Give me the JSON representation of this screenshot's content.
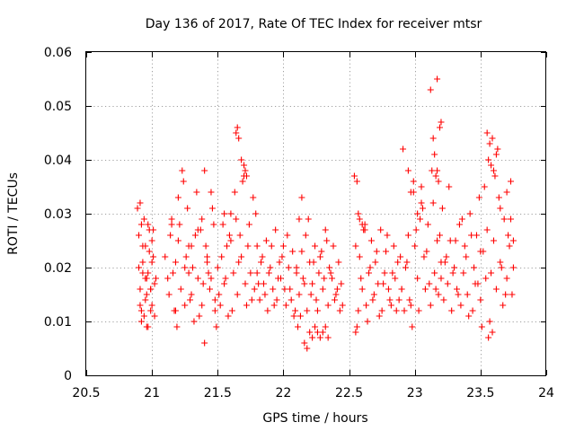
{
  "chart_data": {
    "type": "scatter",
    "title": "Day 136 of 2017, Rate Of TEC Index for receiver mtsr",
    "xlabel": "GPS time / hours",
    "ylabel": "ROTI / TECUs",
    "xlim": [
      20.5,
      24
    ],
    "ylim": [
      0,
      0.06
    ],
    "xticks": [
      20.5,
      21,
      21.5,
      22,
      22.5,
      23,
      23.5,
      24
    ],
    "xtick_labels": [
      "20.5",
      "21",
      "21.5",
      "22",
      "22.5",
      "23",
      "23.5",
      "24"
    ],
    "yticks": [
      0,
      0.01,
      0.02,
      0.03,
      0.04,
      0.05,
      0.06
    ],
    "ytick_labels": [
      "0",
      "0.01",
      "0.02",
      "0.03",
      "0.04",
      "0.05",
      "0.06"
    ],
    "grid": true,
    "marker": "+",
    "color": "#ff0000",
    "series": [
      {
        "name": "ROTI",
        "x": [
          20.89,
          20.9,
          20.91,
          20.92,
          20.93,
          20.94,
          20.95,
          20.96,
          20.97,
          20.98,
          20.99,
          21.0,
          21.01,
          21.02,
          21.03,
          20.9,
          20.91,
          20.92,
          20.93,
          20.94,
          20.95,
          20.96,
          20.97,
          20.98,
          20.99,
          21.0,
          21.02,
          20.91,
          20.93,
          20.95,
          20.97,
          20.99,
          21.01,
          20.92,
          20.96,
          21.0,
          21.1,
          21.12,
          21.14,
          21.15,
          21.17,
          21.18,
          21.2,
          21.22,
          21.23,
          21.25,
          21.27,
          21.28,
          21.3,
          21.32,
          21.34,
          21.35,
          21.37,
          21.38,
          21.4,
          21.42,
          21.44,
          21.45,
          21.47,
          21.48,
          21.13,
          21.16,
          21.19,
          21.21,
          21.24,
          21.26,
          21.29,
          21.31,
          21.33,
          21.36,
          21.39,
          21.41,
          21.43,
          21.46,
          21.49,
          21.15,
          21.2,
          21.25,
          21.3,
          21.35,
          21.4,
          21.45,
          21.18,
          21.28,
          21.38,
          21.42,
          21.48,
          21.5,
          21.52,
          21.54,
          21.55,
          21.57,
          21.58,
          21.6,
          21.62,
          21.63,
          21.65,
          21.67,
          21.68,
          21.7,
          21.72,
          21.74,
          21.75,
          21.77,
          21.78,
          21.8,
          21.51,
          21.53,
          21.56,
          21.59,
          21.61,
          21.64,
          21.66,
          21.69,
          21.71,
          21.73,
          21.76,
          21.79,
          21.64,
          21.65,
          21.66,
          21.68,
          21.7,
          21.71,
          21.72,
          21.6,
          21.55,
          21.8,
          21.82,
          21.84,
          21.85,
          21.87,
          21.88,
          21.9,
          21.92,
          21.94,
          21.95,
          21.97,
          21.98,
          22.0,
          22.02,
          22.04,
          22.05,
          22.07,
          22.08,
          22.1,
          21.81,
          21.83,
          21.86,
          21.89,
          21.91,
          21.93,
          21.96,
          21.99,
          22.01,
          22.03,
          22.06,
          22.09,
          22.1,
          22.12,
          22.14,
          22.15,
          22.17,
          22.18,
          22.2,
          22.22,
          22.24,
          22.25,
          22.27,
          22.28,
          22.3,
          22.32,
          22.34,
          22.35,
          22.37,
          22.38,
          22.4,
          22.42,
          22.44,
          22.45,
          22.11,
          22.13,
          22.16,
          22.19,
          22.21,
          22.23,
          22.26,
          22.29,
          22.31,
          22.33,
          22.36,
          22.39,
          22.41,
          22.43,
          22.16,
          22.18,
          22.2,
          22.22,
          22.24,
          22.26,
          22.28,
          22.3,
          22.32,
          22.34,
          22.14,
          22.12,
          22.55,
          22.57,
          22.58,
          22.6,
          22.62,
          22.64,
          22.65,
          22.67,
          22.68,
          22.7,
          22.72,
          22.74,
          22.75,
          22.77,
          22.78,
          22.8,
          22.82,
          22.84,
          22.85,
          22.87,
          22.88,
          22.9,
          22.56,
          22.59,
          22.61,
          22.63,
          22.66,
          22.69,
          22.71,
          22.73,
          22.76,
          22.79,
          22.81,
          22.83,
          22.86,
          22.89,
          22.54,
          22.56,
          22.58,
          22.6,
          22.62,
          22.55,
          22.57,
          22.9,
          22.92,
          22.94,
          22.95,
          22.97,
          22.98,
          23.0,
          23.02,
          23.04,
          23.05,
          23.07,
          23.08,
          23.1,
          23.12,
          23.14,
          23.15,
          23.17,
          23.18,
          23.2,
          22.91,
          22.93,
          22.96,
          22.99,
          23.01,
          23.03,
          23.06,
          23.09,
          23.11,
          23.13,
          23.16,
          23.19,
          22.95,
          22.97,
          22.99,
          23.02,
          23.05,
          23.14,
          23.15,
          23.16,
          23.17,
          23.18,
          23.19,
          23.2,
          23.12,
          23.17,
          23.2,
          23.22,
          23.24,
          23.25,
          23.27,
          23.28,
          23.3,
          23.32,
          23.34,
          23.35,
          23.37,
          23.38,
          23.4,
          23.42,
          23.44,
          23.45,
          23.47,
          23.48,
          23.5,
          23.21,
          23.23,
          23.26,
          23.29,
          23.31,
          23.33,
          23.36,
          23.39,
          23.41,
          23.43,
          23.46,
          23.49,
          23.5,
          23.52,
          23.54,
          23.55,
          23.57,
          23.58,
          23.6,
          23.62,
          23.64,
          23.65,
          23.67,
          23.68,
          23.7,
          23.72,
          23.74,
          23.75,
          23.51,
          23.53,
          23.56,
          23.59,
          23.61,
          23.63,
          23.66,
          23.69,
          23.71,
          23.73,
          23.55,
          23.57,
          23.58,
          23.6,
          23.62,
          23.65,
          23.7,
          23.73,
          23.75,
          23.56,
          23.59
        ],
        "y": [
          0.031,
          0.02,
          0.013,
          0.028,
          0.019,
          0.011,
          0.024,
          0.018,
          0.009,
          0.027,
          0.016,
          0.013,
          0.022,
          0.011,
          0.018,
          0.026,
          0.016,
          0.012,
          0.021,
          0.029,
          0.014,
          0.009,
          0.019,
          0.023,
          0.016,
          0.021,
          0.017,
          0.032,
          0.024,
          0.018,
          0.028,
          0.012,
          0.027,
          0.01,
          0.015,
          0.025,
          0.022,
          0.018,
          0.026,
          0.029,
          0.012,
          0.021,
          0.025,
          0.016,
          0.038,
          0.013,
          0.031,
          0.019,
          0.024,
          0.01,
          0.034,
          0.018,
          0.027,
          0.013,
          0.038,
          0.022,
          0.016,
          0.034,
          0.028,
          0.012,
          0.015,
          0.019,
          0.009,
          0.028,
          0.036,
          0.022,
          0.014,
          0.02,
          0.026,
          0.011,
          0.017,
          0.024,
          0.019,
          0.031,
          0.009,
          0.028,
          0.033,
          0.02,
          0.015,
          0.027,
          0.006,
          0.018,
          0.012,
          0.024,
          0.029,
          0.021,
          0.014,
          0.02,
          0.013,
          0.028,
          0.017,
          0.024,
          0.011,
          0.03,
          0.019,
          0.034,
          0.015,
          0.026,
          0.022,
          0.037,
          0.013,
          0.028,
          0.019,
          0.033,
          0.016,
          0.024,
          0.015,
          0.022,
          0.018,
          0.026,
          0.012,
          0.029,
          0.021,
          0.036,
          0.017,
          0.024,
          0.014,
          0.03,
          0.045,
          0.046,
          0.044,
          0.04,
          0.039,
          0.038,
          0.037,
          0.025,
          0.03,
          0.019,
          0.014,
          0.022,
          0.017,
          0.025,
          0.012,
          0.02,
          0.016,
          0.027,
          0.014,
          0.021,
          0.018,
          0.024,
          0.013,
          0.02,
          0.016,
          0.023,
          0.011,
          0.019,
          0.017,
          0.021,
          0.015,
          0.019,
          0.024,
          0.013,
          0.018,
          0.022,
          0.016,
          0.026,
          0.014,
          0.012,
          0.02,
          0.015,
          0.023,
          0.018,
          0.026,
          0.012,
          0.021,
          0.017,
          0.024,
          0.014,
          0.019,
          0.022,
          0.016,
          0.027,
          0.013,
          0.02,
          0.018,
          0.024,
          0.015,
          0.021,
          0.017,
          0.013,
          0.009,
          0.011,
          0.017,
          0.029,
          0.015,
          0.021,
          0.012,
          0.023,
          0.018,
          0.025,
          0.019,
          0.014,
          0.016,
          0.012,
          0.006,
          0.005,
          0.008,
          0.007,
          0.009,
          0.008,
          0.007,
          0.008,
          0.009,
          0.007,
          0.033,
          0.029,
          0.008,
          0.012,
          0.022,
          0.016,
          0.028,
          0.01,
          0.019,
          0.025,
          0.014,
          0.021,
          0.017,
          0.027,
          0.012,
          0.019,
          0.023,
          0.016,
          0.013,
          0.024,
          0.018,
          0.021,
          0.014,
          0.016,
          0.009,
          0.018,
          0.027,
          0.013,
          0.02,
          0.015,
          0.023,
          0.011,
          0.017,
          0.026,
          0.014,
          0.019,
          0.012,
          0.022,
          0.037,
          0.036,
          0.029,
          0.028,
          0.027,
          0.024,
          0.03,
          0.016,
          0.012,
          0.021,
          0.026,
          0.013,
          0.009,
          0.024,
          0.018,
          0.029,
          0.035,
          0.022,
          0.016,
          0.028,
          0.013,
          0.032,
          0.019,
          0.025,
          0.015,
          0.021,
          0.042,
          0.02,
          0.014,
          0.034,
          0.027,
          0.012,
          0.031,
          0.023,
          0.017,
          0.038,
          0.016,
          0.026,
          0.038,
          0.034,
          0.036,
          0.03,
          0.032,
          0.044,
          0.041,
          0.037,
          0.038,
          0.036,
          0.046,
          0.047,
          0.053,
          0.055,
          0.018,
          0.014,
          0.022,
          0.017,
          0.025,
          0.012,
          0.02,
          0.016,
          0.028,
          0.013,
          0.019,
          0.024,
          0.015,
          0.03,
          0.012,
          0.02,
          0.026,
          0.017,
          0.023,
          0.031,
          0.021,
          0.035,
          0.019,
          0.025,
          0.015,
          0.029,
          0.022,
          0.011,
          0.026,
          0.017,
          0.033,
          0.014,
          0.023,
          0.018,
          0.027,
          0.01,
          0.019,
          0.025,
          0.016,
          0.033,
          0.021,
          0.013,
          0.029,
          0.018,
          0.024,
          0.015,
          0.02,
          0.009,
          0.035,
          0.04,
          0.044,
          0.037,
          0.042,
          0.02,
          0.015,
          0.026,
          0.036,
          0.045,
          0.043,
          0.039,
          0.038,
          0.041,
          0.031,
          0.034,
          0.029,
          0.025,
          0.007,
          0.008
        ],
        "color": "#ff0000"
      }
    ]
  }
}
